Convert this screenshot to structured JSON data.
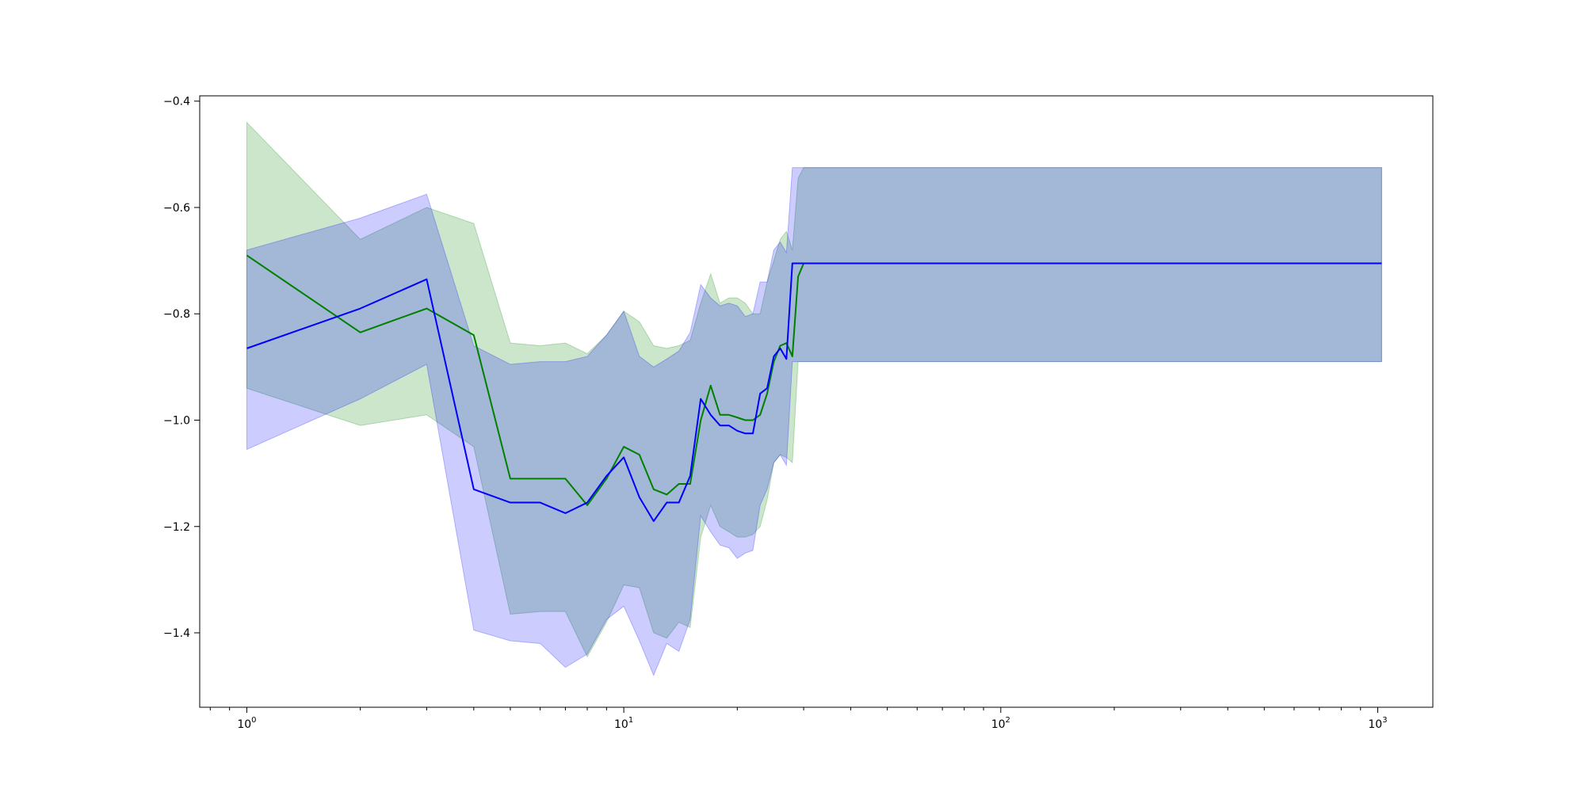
{
  "chart_data": {
    "type": "line",
    "title": "",
    "xlabel": "",
    "ylabel": "",
    "x_scale": "log",
    "xlim": [
      0.75,
      1400
    ],
    "ylim": [
      -1.54,
      -0.39
    ],
    "grid": false,
    "x_ticks": [
      {
        "value": 1,
        "base": "10",
        "exp": "0"
      },
      {
        "value": 10,
        "base": "10",
        "exp": "1"
      },
      {
        "value": 100,
        "base": "10",
        "exp": "2"
      },
      {
        "value": 1000,
        "base": "10",
        "exp": "3"
      }
    ],
    "y_ticks": [
      {
        "value": -0.4,
        "label": "−0.4"
      },
      {
        "value": -0.6,
        "label": "−0.6"
      },
      {
        "value": -0.8,
        "label": "−0.8"
      },
      {
        "value": -1.0,
        "label": "−1.0"
      },
      {
        "value": -1.2,
        "label": "−1.2"
      },
      {
        "value": -1.4,
        "label": "−1.4"
      }
    ],
    "series": [
      {
        "color": "#008000",
        "band_color": "#008000",
        "band_opacity": 0.2,
        "x": [
          1,
          2,
          3,
          4,
          5,
          6,
          7,
          8,
          9,
          10,
          11,
          12,
          13,
          14,
          15,
          16,
          17,
          18,
          19,
          20,
          21,
          22,
          23,
          24,
          25,
          26,
          27,
          28,
          29,
          30,
          1024
        ],
        "y": [
          -0.69,
          -0.835,
          -0.79,
          -0.84,
          -1.11,
          -1.11,
          -1.11,
          -1.16,
          -1.11,
          -1.05,
          -1.065,
          -1.13,
          -1.14,
          -1.12,
          -1.12,
          -1.0,
          -0.935,
          -0.99,
          -0.99,
          -0.995,
          -1.0,
          -1.0,
          -0.99,
          -0.95,
          -0.89,
          -0.86,
          -0.855,
          -0.88,
          -0.73,
          -0.705,
          -0.705
        ],
        "lower": [
          -0.94,
          -1.01,
          -0.99,
          -1.05,
          -1.365,
          -1.36,
          -1.36,
          -1.445,
          -1.38,
          -1.31,
          -1.315,
          -1.4,
          -1.41,
          -1.38,
          -1.39,
          -1.22,
          -1.16,
          -1.2,
          -1.21,
          -1.22,
          -1.22,
          -1.215,
          -1.2,
          -1.15,
          -1.08,
          -1.065,
          -1.07,
          -1.08,
          -0.89,
          -0.89,
          -0.89
        ],
        "upper": [
          -0.44,
          -0.66,
          -0.6,
          -0.63,
          -0.855,
          -0.86,
          -0.855,
          -0.875,
          -0.84,
          -0.795,
          -0.815,
          -0.86,
          -0.865,
          -0.86,
          -0.85,
          -0.78,
          -0.725,
          -0.78,
          -0.77,
          -0.77,
          -0.78,
          -0.8,
          -0.8,
          -0.74,
          -0.7,
          -0.66,
          -0.645,
          -0.68,
          -0.545,
          -0.525,
          -0.525
        ]
      },
      {
        "color": "#0000ff",
        "band_color": "#0000ff",
        "band_opacity": 0.2,
        "x": [
          1,
          2,
          3,
          4,
          5,
          6,
          7,
          8,
          9,
          10,
          11,
          12,
          13,
          14,
          15,
          16,
          17,
          18,
          19,
          20,
          21,
          22,
          23,
          24,
          25,
          26,
          27,
          28,
          29,
          30,
          1024
        ],
        "y": [
          -0.865,
          -0.79,
          -0.735,
          -1.13,
          -1.155,
          -1.155,
          -1.175,
          -1.155,
          -1.105,
          -1.07,
          -1.145,
          -1.19,
          -1.155,
          -1.155,
          -1.105,
          -0.96,
          -0.99,
          -1.01,
          -1.01,
          -1.02,
          -1.025,
          -1.025,
          -0.95,
          -0.94,
          -0.88,
          -0.865,
          -0.885,
          -0.705,
          -0.705,
          -0.705,
          -0.705
        ],
        "lower": [
          -1.055,
          -0.96,
          -0.895,
          -1.395,
          -1.415,
          -1.42,
          -1.465,
          -1.44,
          -1.375,
          -1.35,
          -1.415,
          -1.48,
          -1.42,
          -1.435,
          -1.375,
          -1.18,
          -1.21,
          -1.235,
          -1.24,
          -1.26,
          -1.25,
          -1.245,
          -1.16,
          -1.13,
          -1.08,
          -1.065,
          -1.085,
          -0.89,
          -0.89,
          -0.89,
          -0.89
        ],
        "upper": [
          -0.68,
          -0.62,
          -0.575,
          -0.86,
          -0.895,
          -0.89,
          -0.89,
          -0.88,
          -0.84,
          -0.795,
          -0.88,
          -0.9,
          -0.885,
          -0.87,
          -0.835,
          -0.745,
          -0.77,
          -0.785,
          -0.78,
          -0.785,
          -0.805,
          -0.8,
          -0.74,
          -0.74,
          -0.68,
          -0.665,
          -0.685,
          -0.525,
          -0.525,
          -0.525,
          -0.525
        ]
      }
    ]
  }
}
